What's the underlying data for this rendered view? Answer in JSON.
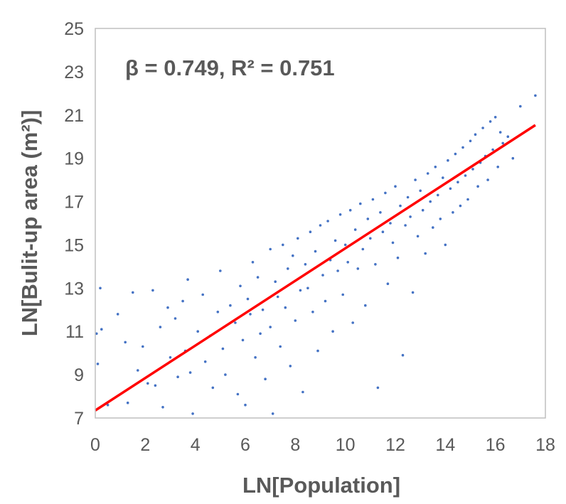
{
  "chart_data": {
    "type": "scatter",
    "title": "",
    "xlabel": "LN[Population]",
    "ylabel": "LN[Bulit-up area (m²)]",
    "annotation": "β = 0.749, R² = 0.751",
    "xlim": [
      0,
      18
    ],
    "ylim": [
      7,
      25
    ],
    "x_ticks": [
      0,
      2,
      4,
      6,
      8,
      10,
      12,
      14,
      16,
      18
    ],
    "y_ticks": [
      7,
      9,
      11,
      13,
      15,
      17,
      19,
      21,
      23,
      25
    ],
    "grid": false,
    "colors": {
      "points": "#4472C4",
      "fit_line": "#FF0000",
      "text": "#595959",
      "frame": "#bfbfbf"
    },
    "fit_line": {
      "slope": 0.749,
      "intercept": 7.35,
      "x_range": [
        0,
        17.6
      ]
    },
    "series": [
      {
        "points": [
          [
            0.05,
            10.9
          ],
          [
            0.1,
            9.5
          ],
          [
            0.2,
            13.0
          ],
          [
            0.25,
            11.1
          ],
          [
            0.5,
            7.6
          ],
          [
            0.9,
            11.8
          ],
          [
            1.2,
            10.5
          ],
          [
            1.3,
            7.7
          ],
          [
            1.5,
            12.8
          ],
          [
            1.7,
            9.2
          ],
          [
            1.9,
            10.3
          ],
          [
            2.1,
            8.6
          ],
          [
            2.3,
            12.9
          ],
          [
            2.4,
            8.5
          ],
          [
            2.6,
            11.2
          ],
          [
            2.7,
            7.5
          ],
          [
            2.9,
            12.1
          ],
          [
            3.0,
            9.8
          ],
          [
            3.2,
            11.6
          ],
          [
            3.3,
            8.9
          ],
          [
            3.5,
            12.4
          ],
          [
            3.6,
            10.1
          ],
          [
            3.7,
            13.4
          ],
          [
            3.8,
            9.1
          ],
          [
            3.9,
            7.2
          ],
          [
            4.1,
            11.0
          ],
          [
            4.3,
            12.7
          ],
          [
            4.4,
            9.6
          ],
          [
            4.6,
            10.8
          ],
          [
            4.7,
            8.4
          ],
          [
            4.9,
            11.9
          ],
          [
            5.0,
            13.8
          ],
          [
            5.1,
            10.2
          ],
          [
            5.2,
            9.0
          ],
          [
            5.4,
            12.2
          ],
          [
            5.6,
            11.4
          ],
          [
            5.7,
            8.1
          ],
          [
            5.8,
            13.1
          ],
          [
            5.9,
            10.6
          ],
          [
            6.0,
            7.6
          ],
          [
            6.1,
            12.5
          ],
          [
            6.2,
            11.8
          ],
          [
            6.3,
            14.2
          ],
          [
            6.4,
            9.8
          ],
          [
            6.5,
            13.5
          ],
          [
            6.6,
            10.9
          ],
          [
            6.7,
            12.0
          ],
          [
            6.8,
            8.8
          ],
          [
            7.0,
            14.8
          ],
          [
            7.0,
            11.2
          ],
          [
            7.1,
            7.2
          ],
          [
            7.2,
            13.3
          ],
          [
            7.3,
            12.6
          ],
          [
            7.4,
            10.3
          ],
          [
            7.5,
            15.0
          ],
          [
            7.6,
            12.1
          ],
          [
            7.7,
            13.9
          ],
          [
            7.8,
            9.4
          ],
          [
            7.9,
            14.5
          ],
          [
            8.0,
            11.5
          ],
          [
            8.1,
            15.3
          ],
          [
            8.2,
            12.9
          ],
          [
            8.3,
            8.2
          ],
          [
            8.4,
            14.1
          ],
          [
            8.5,
            13.0
          ],
          [
            8.6,
            15.6
          ],
          [
            8.7,
            11.9
          ],
          [
            8.8,
            14.7
          ],
          [
            8.9,
            10.1
          ],
          [
            9.0,
            15.9
          ],
          [
            9.1,
            13.6
          ],
          [
            9.2,
            12.4
          ],
          [
            9.3,
            16.1
          ],
          [
            9.4,
            14.3
          ],
          [
            9.5,
            11.0
          ],
          [
            9.6,
            15.2
          ],
          [
            9.7,
            13.8
          ],
          [
            9.8,
            16.4
          ],
          [
            9.9,
            12.7
          ],
          [
            10.0,
            15.0
          ],
          [
            10.1,
            14.2
          ],
          [
            10.2,
            16.6
          ],
          [
            10.3,
            11.4
          ],
          [
            10.4,
            15.7
          ],
          [
            10.5,
            13.9
          ],
          [
            10.6,
            16.9
          ],
          [
            10.7,
            14.8
          ],
          [
            10.8,
            12.2
          ],
          [
            10.9,
            16.2
          ],
          [
            11.0,
            15.3
          ],
          [
            11.1,
            17.1
          ],
          [
            11.2,
            14.1
          ],
          [
            11.3,
            8.4
          ],
          [
            11.4,
            16.5
          ],
          [
            11.5,
            15.6
          ],
          [
            11.6,
            17.4
          ],
          [
            11.7,
            13.2
          ],
          [
            11.8,
            16.0
          ],
          [
            11.9,
            15.1
          ],
          [
            12.0,
            17.7
          ],
          [
            12.1,
            14.4
          ],
          [
            12.2,
            16.8
          ],
          [
            12.3,
            9.9
          ],
          [
            12.4,
            15.9
          ],
          [
            12.5,
            17.2
          ],
          [
            12.6,
            16.3
          ],
          [
            12.7,
            12.8
          ],
          [
            12.8,
            18.0
          ],
          [
            12.9,
            15.4
          ],
          [
            13.0,
            17.5
          ],
          [
            13.1,
            16.6
          ],
          [
            13.2,
            14.6
          ],
          [
            13.3,
            18.3
          ],
          [
            13.4,
            17.0
          ],
          [
            13.5,
            15.8
          ],
          [
            13.6,
            18.6
          ],
          [
            13.7,
            17.3
          ],
          [
            13.8,
            16.2
          ],
          [
            13.9,
            18.1
          ],
          [
            14.0,
            15.0
          ],
          [
            14.1,
            18.9
          ],
          [
            14.2,
            17.6
          ],
          [
            14.3,
            16.5
          ],
          [
            14.4,
            19.2
          ],
          [
            14.5,
            17.9
          ],
          [
            14.6,
            16.8
          ],
          [
            14.7,
            19.5
          ],
          [
            14.8,
            18.2
          ],
          [
            14.9,
            17.1
          ],
          [
            15.0,
            19.8
          ],
          [
            15.1,
            18.5
          ],
          [
            15.2,
            20.1
          ],
          [
            15.3,
            17.7
          ],
          [
            15.4,
            18.8
          ],
          [
            15.5,
            20.4
          ],
          [
            15.6,
            19.1
          ],
          [
            15.7,
            18.0
          ],
          [
            15.8,
            20.7
          ],
          [
            15.9,
            19.4
          ],
          [
            16.0,
            20.9
          ],
          [
            16.1,
            18.6
          ],
          [
            16.2,
            20.2
          ],
          [
            16.3,
            19.7
          ],
          [
            16.5,
            20.0
          ],
          [
            16.7,
            19.0
          ],
          [
            17.0,
            21.4
          ],
          [
            17.6,
            21.9
          ]
        ]
      }
    ]
  }
}
